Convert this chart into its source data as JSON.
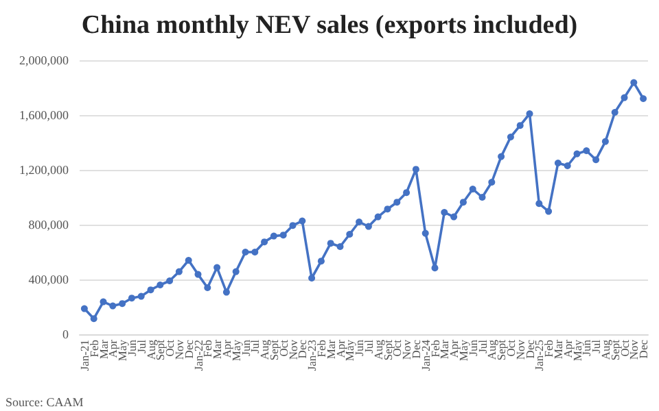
{
  "chart_data": {
    "type": "line",
    "title": "China monthly NEV sales (exports included)",
    "categories": [
      "Jan-21",
      "Feb",
      "Mar",
      "Apr",
      "May",
      "Jun",
      "Jul",
      "Aug",
      "Sept",
      "Oct",
      "Nov",
      "Dec",
      "Jan-22",
      "Feb",
      "Mar",
      "Apr",
      "May",
      "Jun",
      "Jul",
      "Aug",
      "Sept",
      "Oct",
      "Nov",
      "Dec",
      "Jan-23",
      "Feb",
      "Mar",
      "Apr",
      "May",
      "Jun",
      "Jul",
      "Aug",
      "Sept",
      "Oct",
      "Nov",
      "Dec",
      "Jan-24",
      "Feb",
      "Mar",
      "Apr",
      "May",
      "Jun",
      "Jul",
      "Aug",
      "Sept",
      "Oct",
      "Nov",
      "Dec",
      "Jan-25",
      "Feb",
      "Mar",
      "Apr",
      "May",
      "Jun",
      "Jul",
      "Aug",
      "Sept",
      "Oct",
      "Nov",
      "Dec"
    ],
    "series": [
      {
        "color": "#4472c4",
        "values": [
          187000,
          114000,
          237000,
          207000,
          224000,
          264000,
          277000,
          324000,
          360000,
          390000,
          457000,
          540000,
          437000,
          340000,
          487000,
          307000,
          457000,
          600000,
          600000,
          674000,
          717000,
          724000,
          794000,
          827000,
          410000,
          534000,
          664000,
          640000,
          730000,
          820000,
          787000,
          857000,
          914000,
          964000,
          1034000,
          1204000,
          737000,
          484000,
          890000,
          857000,
          964000,
          1060000,
          1000000,
          1110000,
          1297000,
          1440000,
          1524000,
          1610000,
          954000,
          897000,
          1250000,
          1230000,
          1317000,
          1340000,
          1274000,
          1407000,
          1620000,
          1727000,
          1837000,
          1720000
        ]
      }
    ],
    "ylim": [
      0,
      2000000
    ],
    "yticks": [
      0,
      {
        "value": 400000,
        "label": "400,000"
      },
      {
        "value": 800000,
        "label": "800,000"
      },
      {
        "value": 1200000,
        "label": "1,200,000"
      },
      {
        "value": 1600000,
        "label": "1,600,000"
      },
      {
        "value": 2000000,
        "label": "2,000,000"
      }
    ],
    "grid": "y",
    "marker": "circle",
    "line_style": "solid",
    "annotations": [
      "Source: CAAM"
    ]
  }
}
